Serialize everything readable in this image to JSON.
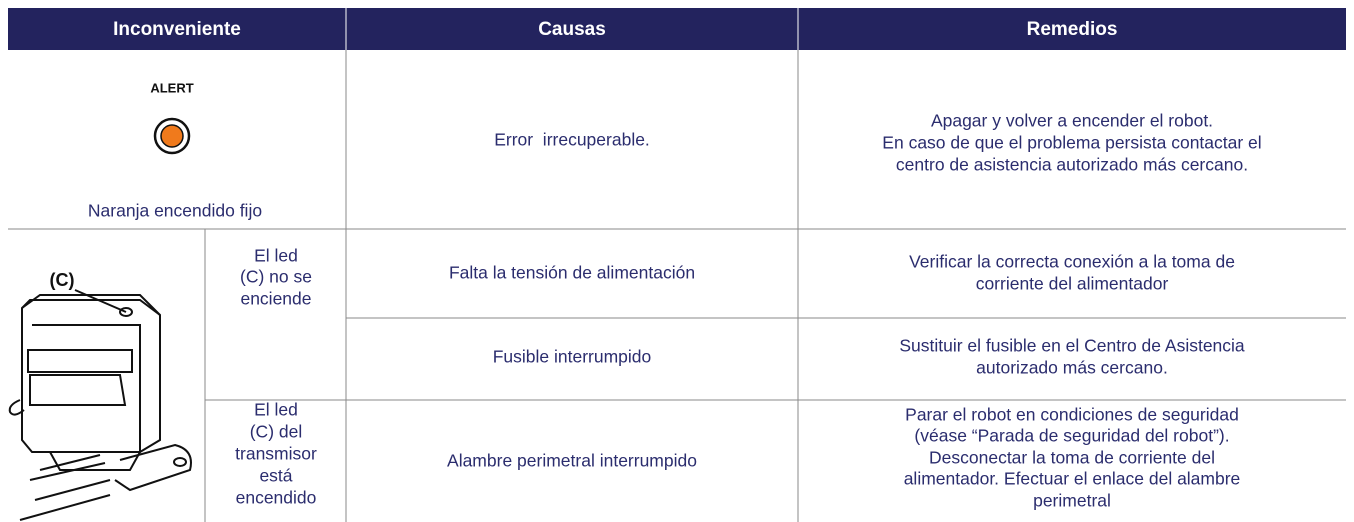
{
  "table": {
    "headers": [
      "Inconveniente",
      "Causas",
      "Remedios"
    ],
    "rows": [
      {
        "icon_label": "ALERT",
        "problem": "Naranja encendido fijo",
        "cause": "Error  irrecuperable.",
        "remedy": [
          "Apagar y volver a encender el robot.",
          "En caso de que el problema persista contactar el",
          "centro de asistencia autorizado más cercano."
        ]
      },
      {
        "image_label": "(C)",
        "symptom": [
          "El led",
          "(C) no se",
          "enciende"
        ],
        "items": [
          {
            "cause": "Falta la tensión de alimentación",
            "remedy": [
              "Verificar la correcta conexión a la toma de",
              "corriente del alimentador"
            ]
          },
          {
            "cause": "Fusible interrumpido",
            "remedy": [
              "Sustituir el fusible en el Centro de Asistencia",
              "autorizado más cercano."
            ]
          }
        ]
      },
      {
        "symptom": [
          "El led",
          "(C) del",
          "transmisor",
          "está",
          "encendido"
        ],
        "items": [
          {
            "cause": "Alambre perimetral interrumpido",
            "remedy": [
              "Parar el robot en condiciones de seguridad",
              "(véase “Parada de seguridad del robot”).",
              "Desconectar la toma de corriente del",
              "alimentador. Efectuar el enlace del alambre",
              "perimetral"
            ]
          }
        ]
      }
    ]
  }
}
